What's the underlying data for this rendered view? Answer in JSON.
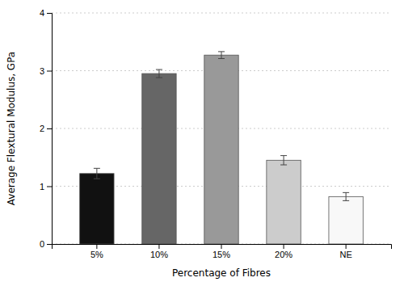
{
  "chart_data": {
    "type": "bar",
    "categories": [
      "5%",
      "10%",
      "15%",
      "20%",
      "NE"
    ],
    "values": [
      1.22,
      2.95,
      3.27,
      1.45,
      0.82
    ],
    "errors": [
      0.09,
      0.07,
      0.06,
      0.08,
      0.07
    ],
    "colors": [
      "#111111",
      "#666666",
      "#999999",
      "#cccccc",
      "#f8f8f8"
    ],
    "xlabel": "Percentage of Fibres",
    "ylabel": "Average Flextural Modulus, GPa",
    "ylim": [
      0,
      4
    ],
    "yticks": [
      0,
      1,
      2,
      3,
      4
    ],
    "grid": true
  }
}
